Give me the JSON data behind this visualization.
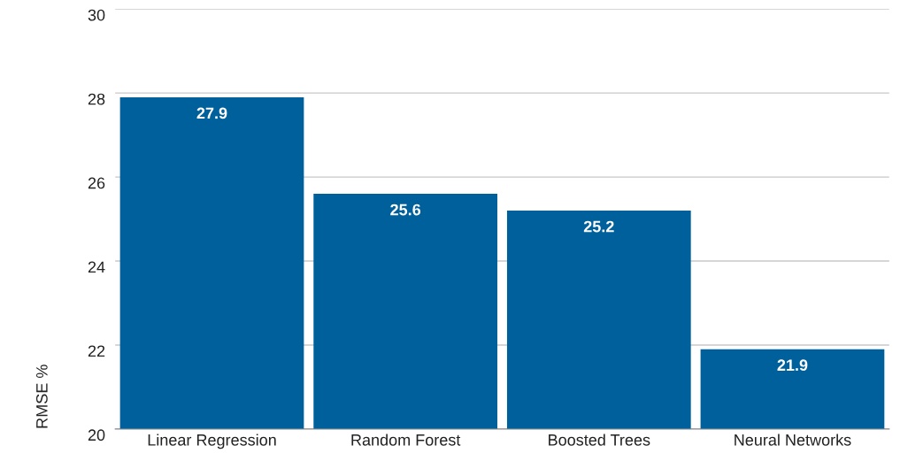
{
  "chart_data": {
    "type": "bar",
    "ylabel": "RMSE %",
    "categories": [
      "Linear Regression",
      "Random Forest",
      "Boosted Trees",
      "Neural Networks"
    ],
    "values": [
      27.9,
      25.6,
      25.2,
      21.9
    ],
    "color": "#00609c",
    "ylim": [
      20,
      30
    ],
    "yticks": [
      20,
      22,
      24,
      26,
      28,
      30
    ],
    "grid": "y",
    "data_labels": true
  }
}
